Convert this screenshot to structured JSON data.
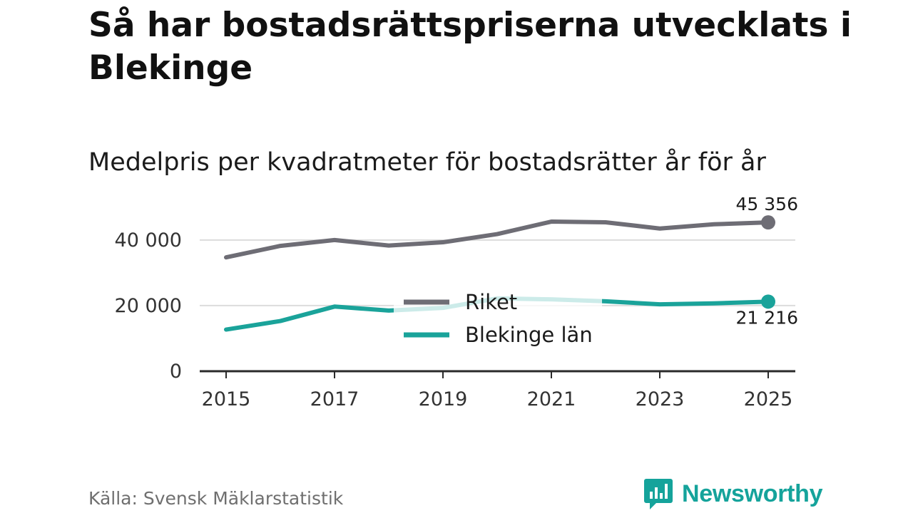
{
  "title": "Så har bostadsrättspriserna utvecklats i Blekinge",
  "subtitle": "Medelpris per kvadratmeter för bostadsrätter år för år",
  "source": "Källa: Svensk Mäklarstatistik",
  "brand": "Newsworthy",
  "colors": {
    "riket": "#6e6d75",
    "blekinge": "#1aa39a",
    "blekinge_faded": "#c8e9e6",
    "grid": "#dcdcdc",
    "axis": "#2a2a2a",
    "brand": "#15a39b"
  },
  "chart_data": {
    "type": "line",
    "x": [
      2015,
      2016,
      2017,
      2018,
      2019,
      2020,
      2021,
      2022,
      2023,
      2024,
      2025
    ],
    "x_ticks": [
      2015,
      2017,
      2019,
      2021,
      2023,
      2025
    ],
    "y_ticks": [
      0,
      20000,
      40000
    ],
    "y_tick_labels": [
      "0",
      "20 000",
      "40 000"
    ],
    "ylim": [
      0,
      48000
    ],
    "series": [
      {
        "name": "Riket",
        "color_key": "riket",
        "values": [
          34700,
          38200,
          40000,
          38300,
          39300,
          41800,
          45600,
          45400,
          43500,
          44800,
          45356
        ],
        "end_label": "45 356"
      },
      {
        "name": "Blekinge län",
        "color_key": "blekinge",
        "values": [
          12700,
          15300,
          19700,
          18500,
          19300,
          22200,
          21900,
          21300,
          20400,
          20700,
          21216
        ],
        "end_label": "21 216"
      }
    ],
    "legend": [
      "Riket",
      "Blekinge län"
    ],
    "legend_position": "center"
  }
}
